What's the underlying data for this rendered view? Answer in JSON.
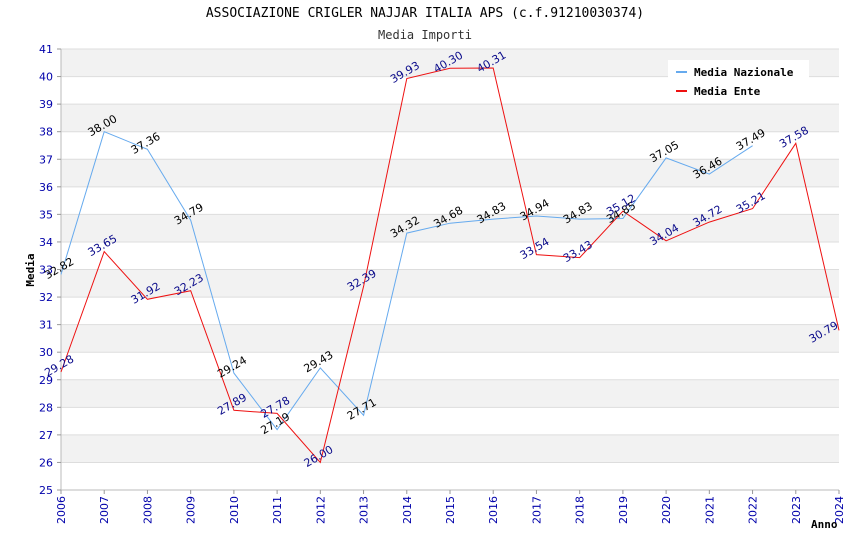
{
  "chart_data": {
    "type": "line",
    "title": "ASSOCIAZIONE CRIGLER NAJJAR ITALIA APS (c.f.91210030374)",
    "subtitle": "Media Importi",
    "xlabel": "Anno",
    "ylabel": "Media",
    "ylim": [
      25,
      41
    ],
    "yticks": [
      "25",
      "26",
      "27",
      "28",
      "29",
      "30",
      "31",
      "32",
      "33",
      "34",
      "35",
      "36",
      "37",
      "38",
      "39",
      "40",
      "41"
    ],
    "categories": [
      "2006",
      "2007",
      "2008",
      "2009",
      "2010",
      "2011",
      "2012",
      "2013",
      "2014",
      "2015",
      "2016",
      "2017",
      "2018",
      "2019",
      "2020",
      "2021",
      "2022",
      "2023",
      "2024"
    ],
    "grid": true,
    "legend_position": "top-right",
    "series": [
      {
        "name": "Media Nazionale",
        "color": "#66aaee",
        "values": [
          32.82,
          38.0,
          37.36,
          34.79,
          29.24,
          27.19,
          29.43,
          27.71,
          34.32,
          34.68,
          34.83,
          34.94,
          34.83,
          34.85,
          37.05,
          36.46,
          37.49,
          null,
          null
        ],
        "labels": [
          "32.82",
          "38.00",
          "37.36",
          "34.79",
          "29.24",
          "27.19",
          "29.43",
          "27.71",
          "34.32",
          "34.68",
          "34.83",
          "34.94",
          "34.83",
          "34.85",
          "37.05",
          "36.46",
          "37.49",
          null,
          null
        ]
      },
      {
        "name": "Media Ente",
        "color": "#ee1111",
        "values": [
          29.28,
          33.65,
          31.92,
          32.23,
          27.89,
          27.78,
          26.0,
          32.39,
          39.93,
          40.3,
          40.31,
          33.54,
          33.43,
          35.12,
          34.04,
          34.72,
          35.21,
          37.58,
          30.79
        ],
        "labels": [
          "29.28",
          "33.65",
          "31.92",
          "32.23",
          "27.89",
          "27.78",
          "26.00",
          "32.39",
          "39.93",
          "40.30",
          "40.31",
          "33.54",
          "33.43",
          "35.12",
          "34.04",
          "34.72",
          "35.21",
          "37.58",
          "30.79"
        ]
      }
    ]
  }
}
